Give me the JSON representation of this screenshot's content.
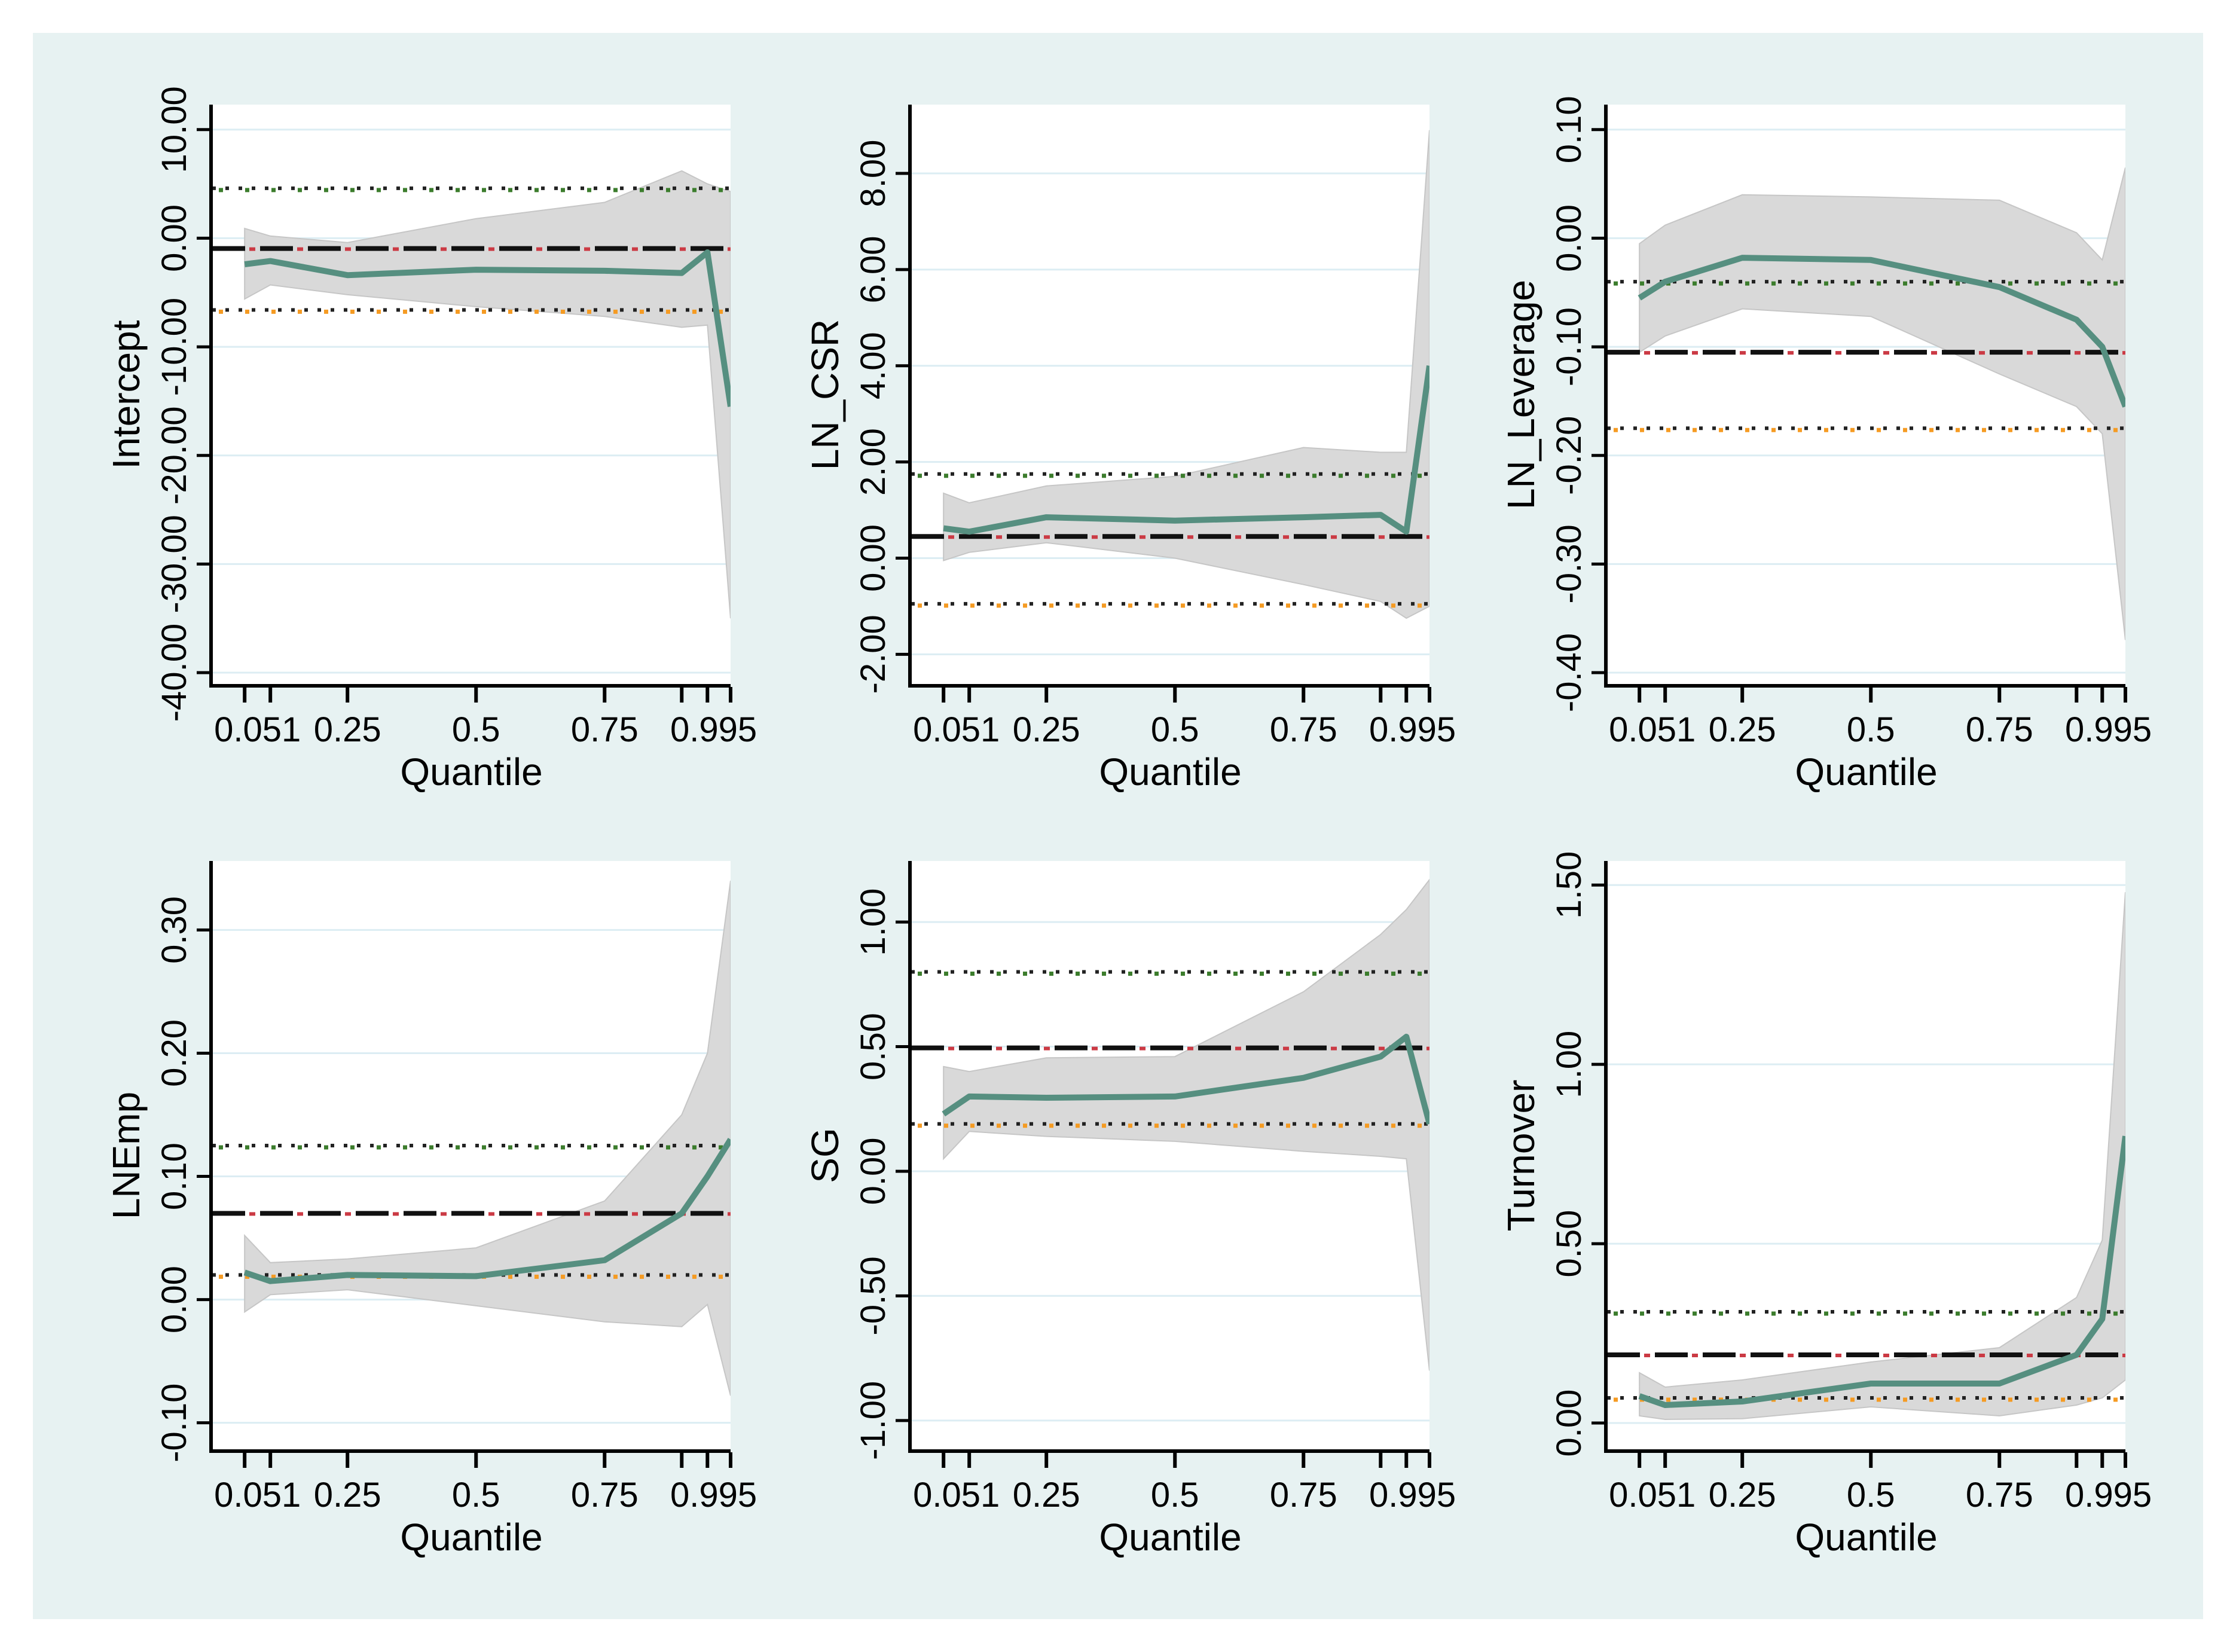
{
  "figure": {
    "xlabel": "Quantile",
    "x_tick_labels": [
      "0.051",
      "0.25",
      "0.5",
      "0.75",
      "0.995"
    ],
    "x_tick_label_positions": [
      0.075,
      0.25,
      0.5,
      0.75,
      0.962
    ],
    "x_tick_marks": [
      0.05,
      0.1,
      0.25,
      0.5,
      0.75,
      0.9,
      0.95,
      0.995
    ],
    "quantiles": [
      0.05,
      0.1,
      0.25,
      0.5,
      0.75,
      0.9,
      0.95,
      0.995
    ],
    "legend": "none",
    "grid": "horizontal"
  },
  "colors": {
    "page_background": "#ffffff",
    "figure_background": "#e7f2f2",
    "plot_background": "#ffffff",
    "gridline": "#dcedf3",
    "axis": "#000000",
    "ci_band_fill": "#d9d9d9",
    "ci_band_edge": "#c6c6c6",
    "quantile_line": "#568f80",
    "ols_dash_black": "#111111",
    "ols_red": "#cb3a44",
    "ols_ci_dot_black": "#222222",
    "ols_ci_upper_dot_green": "#3c7d2d",
    "ols_ci_lower_dot_orange": "#f59b23"
  },
  "chart_data": [
    {
      "type": "line",
      "ylabel": "Intercept",
      "xlabel": "Quantile",
      "x": [
        0.05,
        0.1,
        0.25,
        0.5,
        0.75,
        0.9,
        0.95,
        0.995
      ],
      "ylim": [
        -41.1,
        12.3
      ],
      "yticks": [
        {
          "label": "10.00",
          "value": 10
        },
        {
          "label": "0.00",
          "value": 0
        },
        {
          "label": "-10.00",
          "value": -10
        },
        {
          "label": "-20.00",
          "value": -20
        },
        {
          "label": "-30.00",
          "value": -30
        },
        {
          "label": "-40.00",
          "value": -40
        }
      ],
      "quantile_estimates": [
        -2.4,
        -2.1,
        -3.4,
        -2.9,
        -3.0,
        -3.2,
        -1.3,
        -15.5
      ],
      "band_upper": [
        0.9,
        0.2,
        -0.4,
        1.8,
        3.3,
        6.2,
        5.0,
        4.3
      ],
      "band_lower": [
        -5.6,
        -4.3,
        -5.2,
        -6.3,
        -7.2,
        -8.2,
        -8.0,
        -35.0
      ],
      "ols_estimate": -0.95,
      "ols_ci_upper": 4.6,
      "ols_ci_lower": -6.6
    },
    {
      "type": "line",
      "ylabel": "LN_CSR",
      "xlabel": "Quantile",
      "x": [
        0.05,
        0.1,
        0.25,
        0.5,
        0.75,
        0.9,
        0.95,
        0.995
      ],
      "ylim": [
        -2.63,
        9.43
      ],
      "yticks": [
        {
          "label": "8.00",
          "value": 8
        },
        {
          "label": "6.00",
          "value": 6
        },
        {
          "label": "4.00",
          "value": 4
        },
        {
          "label": "2.00",
          "value": 2
        },
        {
          "label": "0.00",
          "value": 0
        },
        {
          "label": "-2.00",
          "value": -2
        }
      ],
      "quantile_estimates": [
        0.62,
        0.55,
        0.85,
        0.78,
        0.85,
        0.9,
        0.55,
        4.0
      ],
      "band_upper": [
        1.35,
        1.15,
        1.5,
        1.7,
        2.3,
        2.2,
        2.2,
        8.9
      ],
      "band_lower": [
        -0.05,
        0.12,
        0.32,
        0.0,
        -0.55,
        -0.9,
        -1.25,
        -1.0
      ],
      "ols_estimate": 0.45,
      "ols_ci_upper": 1.75,
      "ols_ci_lower": -0.95
    },
    {
      "type": "line",
      "ylabel": "LN_Leverage",
      "xlabel": "Quantile",
      "x": [
        0.05,
        0.1,
        0.25,
        0.5,
        0.75,
        0.9,
        0.95,
        0.995
      ],
      "ylim": [
        -0.411,
        0.123
      ],
      "yticks": [
        {
          "label": "0.10",
          "value": 0.1
        },
        {
          "label": "0.00",
          "value": 0.0
        },
        {
          "label": "-0.10",
          "value": -0.1
        },
        {
          "label": "-0.20",
          "value": -0.2
        },
        {
          "label": "-0.30",
          "value": -0.3
        },
        {
          "label": "-0.40",
          "value": -0.4
        }
      ],
      "quantile_estimates": [
        -0.055,
        -0.04,
        -0.018,
        -0.02,
        -0.045,
        -0.075,
        -0.1,
        -0.155
      ],
      "band_upper": [
        -0.005,
        0.012,
        0.04,
        0.038,
        0.035,
        0.005,
        -0.02,
        0.065
      ],
      "band_lower": [
        -0.105,
        -0.09,
        -0.065,
        -0.072,
        -0.125,
        -0.155,
        -0.18,
        -0.37
      ],
      "ols_estimate": -0.105,
      "ols_ci_upper": -0.04,
      "ols_ci_lower": -0.175
    },
    {
      "type": "line",
      "ylabel": "LNEmp",
      "xlabel": "Quantile",
      "x": [
        0.05,
        0.1,
        0.25,
        0.5,
        0.75,
        0.9,
        0.95,
        0.995
      ],
      "ylim": [
        -0.122,
        0.356
      ],
      "yticks": [
        {
          "label": "0.30",
          "value": 0.3
        },
        {
          "label": "0.20",
          "value": 0.2
        },
        {
          "label": "0.10",
          "value": 0.1
        },
        {
          "label": "0.00",
          "value": 0.0
        },
        {
          "label": "-0.10",
          "value": -0.1
        }
      ],
      "quantile_estimates": [
        0.022,
        0.015,
        0.02,
        0.019,
        0.032,
        0.07,
        0.1,
        0.13
      ],
      "band_upper": [
        0.052,
        0.03,
        0.033,
        0.042,
        0.08,
        0.15,
        0.2,
        0.34
      ],
      "band_lower": [
        -0.01,
        0.004,
        0.008,
        -0.005,
        -0.018,
        -0.022,
        -0.004,
        -0.078
      ],
      "ols_estimate": 0.07,
      "ols_ci_upper": 0.125,
      "ols_ci_lower": 0.02
    },
    {
      "type": "line",
      "ylabel": "SG",
      "xlabel": "Quantile",
      "x": [
        0.05,
        0.1,
        0.25,
        0.5,
        0.75,
        0.9,
        0.95,
        0.995
      ],
      "ylim": [
        -1.118,
        1.245
      ],
      "yticks": [
        {
          "label": "1.00",
          "value": 1.0
        },
        {
          "label": "0.50",
          "value": 0.5
        },
        {
          "label": "0.00",
          "value": 0.0
        },
        {
          "label": "-0.50",
          "value": -0.5
        },
        {
          "label": "-1.00",
          "value": -1.0
        }
      ],
      "quantile_estimates": [
        0.23,
        0.3,
        0.295,
        0.3,
        0.375,
        0.46,
        0.54,
        0.19
      ],
      "band_upper": [
        0.42,
        0.4,
        0.455,
        0.46,
        0.72,
        0.95,
        1.05,
        1.17
      ],
      "band_lower": [
        0.05,
        0.16,
        0.14,
        0.12,
        0.08,
        0.06,
        0.05,
        -0.8
      ],
      "ols_estimate": 0.495,
      "ols_ci_upper": 0.8,
      "ols_ci_lower": 0.19
    },
    {
      "type": "line",
      "ylabel": "Turnover",
      "xlabel": "Quantile",
      "x": [
        0.05,
        0.1,
        0.25,
        0.5,
        0.75,
        0.9,
        0.95,
        0.995
      ],
      "ylim": [
        -0.075,
        1.567
      ],
      "yticks": [
        {
          "label": "1.50",
          "value": 1.5
        },
        {
          "label": "1.00",
          "value": 1.0
        },
        {
          "label": "0.50",
          "value": 0.5
        },
        {
          "label": "0.00",
          "value": 0.0
        }
      ],
      "quantile_estimates": [
        0.075,
        0.05,
        0.06,
        0.11,
        0.11,
        0.19,
        0.29,
        0.8
      ],
      "band_upper": [
        0.14,
        0.1,
        0.12,
        0.17,
        0.21,
        0.35,
        0.51,
        1.48
      ],
      "band_lower": [
        0.02,
        0.01,
        0.012,
        0.045,
        0.02,
        0.05,
        0.07,
        0.12
      ],
      "ols_estimate": 0.19,
      "ols_ci_upper": 0.31,
      "ols_ci_lower": 0.07
    }
  ]
}
